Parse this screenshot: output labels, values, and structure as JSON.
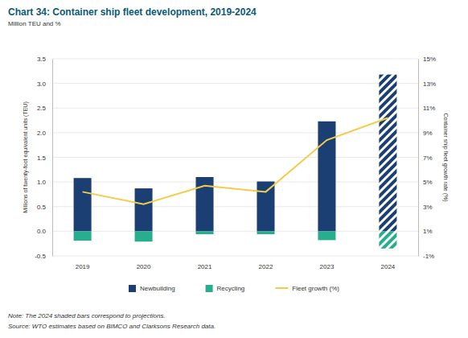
{
  "chart_data": {
    "type": "bar",
    "title": "Chart 34: Container ship fleet development, 2019-2024",
    "subtitle": "Million TEU and %",
    "y_label": "Millions of twenty-foot equivalent units (TEU)",
    "y2_label": "Container ship fleet growth rate (%)",
    "categories": [
      "2019",
      "2020",
      "2021",
      "2022",
      "2023",
      "2024"
    ],
    "series": [
      {
        "name": "Newbuilding",
        "color": "#1b3f73",
        "values": [
          1.08,
          0.87,
          1.1,
          1.01,
          2.23,
          3.18
        ]
      },
      {
        "name": "Recycling",
        "color": "#27ae8c",
        "values": [
          -0.19,
          -0.21,
          -0.06,
          -0.06,
          -0.18,
          -0.35
        ]
      },
      {
        "name": "Fleet growth (%)",
        "color": "#f2cd4c",
        "type": "line",
        "axis": "y2",
        "values": [
          4.2,
          3.2,
          4.7,
          4.2,
          8.4,
          10.2
        ]
      }
    ],
    "ylim": [
      -0.5,
      3.5
    ],
    "yticks": [
      -0.5,
      {
        "value": 0,
        "label": "0.0"
      },
      0.5,
      {
        "value": 1,
        "label": "1.0"
      },
      1.5,
      {
        "value": 2,
        "label": "2.0"
      },
      2.5,
      {
        "value": 3,
        "label": "3.0"
      },
      3.5
    ],
    "y2lim": [
      -1,
      15
    ],
    "y2ticks": [
      {
        "value": -1,
        "label": "-1%"
      },
      {
        "value": 1,
        "label": "1%"
      },
      {
        "value": 3,
        "label": "3%"
      },
      {
        "value": 5,
        "label": "5%"
      },
      {
        "value": 7,
        "label": "7%"
      },
      {
        "value": 9,
        "label": "9%"
      },
      {
        "value": 11,
        "label": "11%"
      },
      {
        "value": 13,
        "label": "13%"
      },
      {
        "value": 15,
        "label": "15%"
      }
    ],
    "grid": true,
    "legend": "bottom",
    "note": "Note: The 2024 shaded bars correspond to projections.",
    "source": "Source: WTO estimates based on BIMCO and Clarksons Research data."
  }
}
